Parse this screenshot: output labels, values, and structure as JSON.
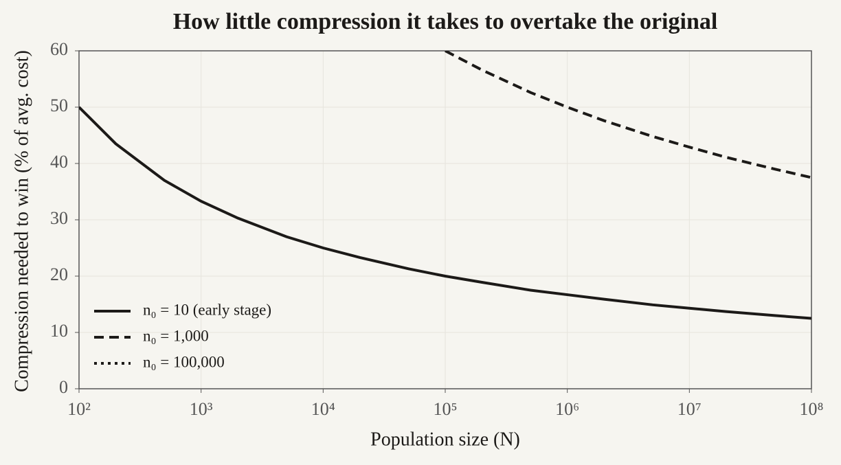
{
  "chart_data": {
    "type": "line",
    "title": "How little compression it takes to overtake the original",
    "x_label": "Population size (N)",
    "y_label": "Compression needed to win (% of avg. cost)",
    "x": [
      100,
      200,
      500,
      1000,
      2000,
      5000,
      10000,
      20000,
      50000,
      100000,
      200000,
      500000,
      1000000,
      2000000,
      5000000,
      10000000,
      20000000,
      50000000,
      100000000
    ],
    "series": [
      {
        "name": "n₀ = 10 (early stage)",
        "color": "#1c1a18",
        "dash": "solid",
        "values": [
          50,
          43.5,
          37.0,
          33.3,
          30.3,
          27.0,
          25,
          23.3,
          21.3,
          20,
          18.9,
          17.5,
          16.7,
          15.9,
          14.9,
          14.3,
          13.7,
          13.0,
          12.5
        ]
      },
      {
        "name": "n₀ = 1,000",
        "color": "#1c1a18",
        "dash": "dashed",
        "values": [
          null,
          null,
          null,
          null,
          null,
          null,
          null,
          null,
          null,
          60,
          56.6,
          52.6,
          50,
          47.6,
          44.8,
          42.9,
          41.1,
          39.0,
          37.5
        ]
      },
      {
        "name": "n₀ = 100,000",
        "color": "#1c1a18",
        "dash": "dotted",
        "values": [
          null,
          null,
          null,
          null,
          null,
          null,
          null,
          null,
          null,
          null,
          null,
          null,
          null,
          null,
          null,
          null,
          null,
          null,
          null
        ]
      }
    ],
    "xscale": "log",
    "xlim": [
      100,
      100000000
    ],
    "xticks": [
      {
        "value": 100,
        "label": "10²"
      },
      {
        "value": 1000,
        "label": "10³"
      },
      {
        "value": 10000,
        "label": "10⁴"
      },
      {
        "value": 100000,
        "label": "10⁵"
      },
      {
        "value": 1000000,
        "label": "10⁶"
      },
      {
        "value": 10000000,
        "label": "10⁷"
      },
      {
        "value": 100000000,
        "label": "10⁸"
      }
    ],
    "ylim": [
      0,
      60
    ],
    "yticks": [
      0,
      10,
      20,
      30,
      40,
      50,
      60
    ],
    "grid": true,
    "legend": "lower left"
  }
}
